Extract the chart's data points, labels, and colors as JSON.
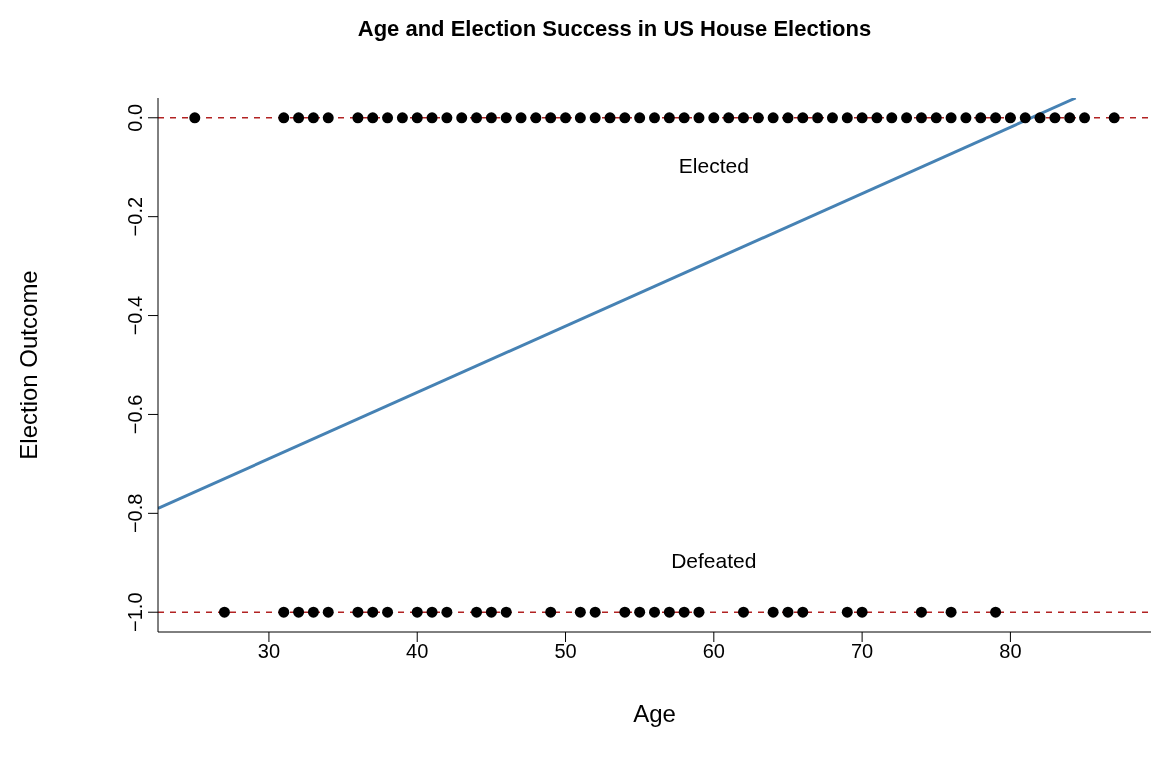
{
  "chart_data": {
    "type": "scatter",
    "title": "Age and Election Success in US House Elections",
    "xlabel": "Age",
    "ylabel": "Election Outcome",
    "xlim": [
      22.52,
      89.48
    ],
    "xticks": [
      30,
      40,
      50,
      60,
      70,
      80
    ],
    "ylim": [
      -1.04,
      0.04
    ],
    "yticks": [
      {
        "value": 0,
        "label": "0.0"
      },
      {
        "value": -0.2,
        "label": "−0.2"
      },
      {
        "value": -0.4,
        "label": "−0.4"
      },
      {
        "value": -0.6,
        "label": "−0.6"
      },
      {
        "value": -0.8,
        "label": "−0.8"
      },
      {
        "value": -1,
        "label": "−1.0"
      }
    ],
    "grid": false,
    "legend": false,
    "marker": "circle",
    "series": [
      {
        "color": "#000000",
        "x": [
          25,
          31,
          32,
          33,
          34,
          36,
          37,
          38,
          39,
          40,
          41,
          42,
          43,
          44,
          45,
          46,
          47,
          48,
          49,
          50,
          51,
          52,
          53,
          54,
          55,
          56,
          57,
          58,
          59,
          60,
          61,
          62,
          63,
          64,
          65,
          66,
          67,
          68,
          69,
          70,
          71,
          72,
          73,
          74,
          75,
          76,
          77,
          78,
          79,
          80,
          81,
          82,
          83,
          84,
          85,
          87
        ],
        "values": [
          0,
          0,
          0,
          0,
          0,
          0,
          0,
          0,
          0,
          0,
          0,
          0,
          0,
          0,
          0,
          0,
          0,
          0,
          0,
          0,
          0,
          0,
          0,
          0,
          0,
          0,
          0,
          0,
          0,
          0,
          0,
          0,
          0,
          0,
          0,
          0,
          0,
          0,
          0,
          0,
          0,
          0,
          0,
          0,
          0,
          0,
          0,
          0,
          0,
          0,
          0,
          0,
          0,
          0,
          0,
          0
        ]
      },
      {
        "color": "#000000",
        "x": [
          27,
          31,
          32,
          33,
          34,
          36,
          37,
          38,
          40,
          41,
          42,
          44,
          45,
          46,
          49,
          51,
          52,
          54,
          55,
          56,
          57,
          58,
          59,
          62,
          64,
          65,
          66,
          69,
          70,
          74,
          76,
          79
        ],
        "values": [
          -1,
          -1,
          -1,
          -1,
          -1,
          -1,
          -1,
          -1,
          -1,
          -1,
          -1,
          -1,
          -1,
          -1,
          -1,
          -1,
          -1,
          -1,
          -1,
          -1,
          -1,
          -1,
          -1,
          -1,
          -1,
          -1,
          -1,
          -1,
          -1,
          -1,
          -1,
          -1
        ]
      },
      {
        "type": "line",
        "color": "#4682b4",
        "x": [
          22.52,
          84.4
        ],
        "values": [
          -0.79,
          0.04
        ],
        "marker": "none",
        "line_style": "solid"
      }
    ],
    "ref_lines": [
      {
        "axis": "y",
        "value": 0,
        "color": "#b22222",
        "line_style": "dashed"
      },
      {
        "axis": "y",
        "value": -1,
        "color": "#b22222",
        "line_style": "dashed"
      }
    ],
    "annotations": [
      "Elected",
      "Defeated"
    ]
  }
}
